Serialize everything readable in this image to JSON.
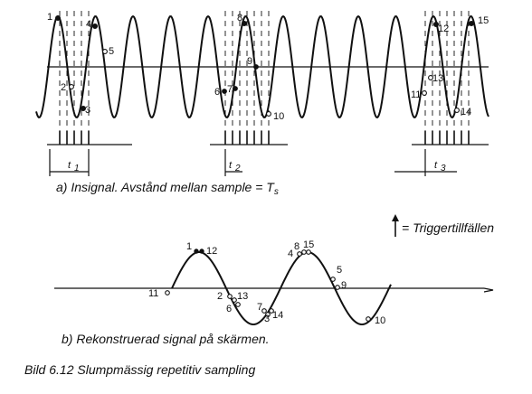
{
  "captions": {
    "a": "a) Insignal. Avstånd mellan sample = T",
    "a_sub": "s",
    "b": "b) Rekonstruerad signal på skärmen.",
    "figure": "Bild 6.12 Slumpmässig repetitiv sampling"
  },
  "legend": {
    "trigger_label": "= Triggertillfällen"
  },
  "intervals": [
    {
      "label": "t",
      "sub": "1"
    },
    {
      "label": "t",
      "sub": "2"
    },
    {
      "label": "t",
      "sub": "3"
    }
  ],
  "top_points": [
    "1",
    "2",
    "3",
    "4",
    "5",
    "6",
    "7",
    "8",
    "9",
    "10",
    "11",
    "12",
    "13",
    "14",
    "15"
  ],
  "bottom_points": [
    "1",
    "12",
    "2",
    "13",
    "6",
    "7",
    "3",
    "14",
    "4",
    "8",
    "15",
    "5",
    "9",
    "10",
    "11"
  ]
}
